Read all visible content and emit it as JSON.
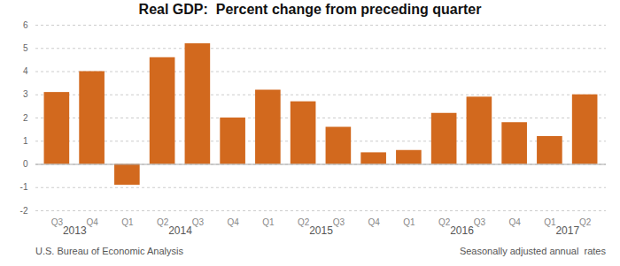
{
  "chart_data": {
    "type": "bar",
    "title": "Real GDP:  Percent change from preceding quarter",
    "categories": [
      "Q3",
      "Q4",
      "Q1",
      "Q2",
      "Q3",
      "Q4",
      "Q1",
      "Q2",
      "Q3",
      "Q4",
      "Q1",
      "Q2",
      "Q3",
      "Q4",
      "Q1",
      "Q2"
    ],
    "values": [
      3.1,
      4.0,
      -0.9,
      4.6,
      5.2,
      2.0,
      3.2,
      2.7,
      1.6,
      0.5,
      0.6,
      2.2,
      2.9,
      1.8,
      1.2,
      3.0
    ],
    "groups": [
      {
        "label": "2013",
        "count": 2
      },
      {
        "label": "2014",
        "count": 4
      },
      {
        "label": "2015",
        "count": 4
      },
      {
        "label": "2016",
        "count": 4
      },
      {
        "label": "2017",
        "count": 2
      }
    ],
    "color": "#D2691E",
    "ylim": [
      -2,
      6
    ],
    "yticks": [
      -2,
      -1,
      0,
      1,
      2,
      3,
      4,
      5,
      6
    ],
    "grid": true,
    "source": "U.S. Bureau of Economic Analysis",
    "note": "Seasonally adjusted annual  rates"
  }
}
